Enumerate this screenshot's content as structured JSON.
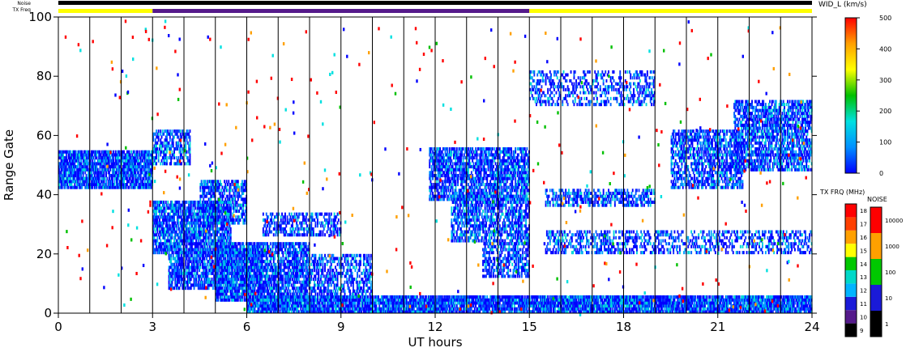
{
  "top_bar_labels": {
    "noise": "Noise",
    "txfreq": "TX Freq"
  },
  "colors": {
    "noise_bar": "#000000",
    "txfreq_yellow": "#ffff00",
    "txfreq_purple": "#551a8b",
    "axis": "#000000",
    "grid": "#000000"
  },
  "chart_data": {
    "type": "heatmap",
    "xlabel": "UT hours",
    "ylabel": "Range Gate",
    "xlim": [
      0,
      24
    ],
    "ylim": [
      0,
      100
    ],
    "x_ticks": [
      0,
      3,
      6,
      9,
      12,
      15,
      18,
      21,
      24
    ],
    "x_tick_labels": [
      "0",
      "3",
      "6",
      "9",
      "12",
      "15",
      "18",
      "21",
      "24"
    ],
    "y_ticks": [
      0,
      20,
      40,
      60,
      80,
      100
    ],
    "y_tick_labels": [
      "0",
      "20",
      "40",
      "60",
      "80",
      "100"
    ],
    "vertical_grid_hours": [
      1,
      2,
      3,
      4,
      5,
      6,
      7,
      8,
      9,
      10,
      11,
      12,
      13,
      14,
      15,
      16,
      17,
      18,
      19,
      20,
      21,
      22,
      23
    ],
    "tx_freq_segments": [
      {
        "start": 0,
        "end": 3,
        "color": "yellow"
      },
      {
        "start": 3,
        "end": 15,
        "color": "purple"
      },
      {
        "start": 15,
        "end": 24,
        "color": "yellow"
      }
    ],
    "echo_regions": [
      {
        "x0": 0.0,
        "x1": 3.0,
        "y0": 42,
        "y1": 55,
        "density": 0.85
      },
      {
        "x0": 3.0,
        "x1": 4.2,
        "y0": 50,
        "y1": 62,
        "density": 0.6
      },
      {
        "x0": 3.0,
        "x1": 5.5,
        "y0": 20,
        "y1": 38,
        "density": 0.75
      },
      {
        "x0": 4.5,
        "x1": 6.0,
        "y0": 30,
        "y1": 45,
        "density": 0.6
      },
      {
        "x0": 3.5,
        "x1": 6.5,
        "y0": 8,
        "y1": 22,
        "density": 0.7
      },
      {
        "x0": 5.0,
        "x1": 8.0,
        "y0": 4,
        "y1": 24,
        "density": 0.75
      },
      {
        "x0": 6.5,
        "x1": 9.0,
        "y0": 26,
        "y1": 34,
        "density": 0.5
      },
      {
        "x0": 6.0,
        "x1": 24.0,
        "y0": 0,
        "y1": 6,
        "density": 0.9
      },
      {
        "x0": 8.0,
        "x1": 10.0,
        "y0": 4,
        "y1": 20,
        "density": 0.5
      },
      {
        "x0": 11.8,
        "x1": 15.0,
        "y0": 38,
        "y1": 56,
        "density": 0.7
      },
      {
        "x0": 12.5,
        "x1": 15.0,
        "y0": 24,
        "y1": 40,
        "density": 0.6
      },
      {
        "x0": 13.5,
        "x1": 15.0,
        "y0": 12,
        "y1": 24,
        "density": 0.55
      },
      {
        "x0": 15.5,
        "x1": 19.0,
        "y0": 36,
        "y1": 42,
        "density": 0.5
      },
      {
        "x0": 15.5,
        "x1": 24.0,
        "y0": 20,
        "y1": 28,
        "density": 0.4
      },
      {
        "x0": 19.5,
        "x1": 21.8,
        "y0": 42,
        "y1": 62,
        "density": 0.6
      },
      {
        "x0": 21.5,
        "x1": 24.0,
        "y0": 48,
        "y1": 72,
        "density": 0.65
      },
      {
        "x0": 15.0,
        "x1": 19.0,
        "y0": 70,
        "y1": 82,
        "density": 0.35
      }
    ]
  },
  "colorbar_wid": {
    "title": "WID_L (km/s)",
    "ticks": [
      "0",
      "100",
      "200",
      "300",
      "400",
      "500"
    ],
    "stops": [
      "#0000ff",
      "#0090ff",
      "#00e0e0",
      "#00c000",
      "#ffff00",
      "#ffa000",
      "#ff0000"
    ]
  },
  "colorbar_txfreq": {
    "title": "TX FRQ (MHz)",
    "ticks": [
      "9",
      "10",
      "11",
      "12",
      "13",
      "14",
      "15",
      "16",
      "17",
      "18"
    ],
    "colors": [
      "#000000",
      "#551a8b",
      "#1a1ad8",
      "#00b4ff",
      "#00d8c8",
      "#00c800",
      "#ffff00",
      "#ffa000",
      "#ff4000",
      "#ff0000"
    ]
  },
  "colorbar_noise": {
    "title": "NOISE",
    "ticks": [
      "1",
      "10",
      "100",
      "1000",
      "10000"
    ],
    "colors": [
      "#000000",
      "#1a1ad8",
      "#00c800",
      "#ffa000",
      "#ff0000"
    ]
  }
}
